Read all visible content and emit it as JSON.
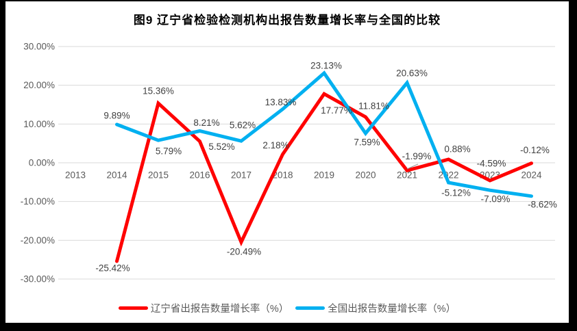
{
  "title": "图9  辽宁省检验检测机构出报告数量增长率与全国的比较",
  "chart_data": {
    "type": "line",
    "title": "图9  辽宁省检验检测机构出报告数量增长率与全国的比较",
    "categories": [
      "2013",
      "2014",
      "2015",
      "2016",
      "2017",
      "2018",
      "2019",
      "2020",
      "2021",
      "2022",
      "2023",
      "2024"
    ],
    "series": [
      {
        "name": "辽宁省出报告数量增长率（%）",
        "color": "#FF0000",
        "values": [
          null,
          -25.42,
          15.36,
          5.52,
          -20.49,
          2.18,
          17.77,
          11.81,
          -1.99,
          0.88,
          -4.59,
          -0.12
        ],
        "labels": [
          null,
          "-25.42%",
          "15.36%",
          "5.52%",
          "-20.49%",
          "2.18%",
          "17.77%",
          "11.81%",
          "-1.99%",
          "0.88%",
          "-4.59%",
          "-0.12%"
        ],
        "label_offsets": [
          null,
          [
            -6,
            10
          ],
          [
            0,
            -18
          ],
          [
            32,
            8
          ],
          [
            4,
            14
          ],
          [
            -10,
            -13
          ],
          [
            18,
            24
          ],
          [
            12,
            -16
          ],
          [
            14,
            -21
          ],
          [
            13,
            -15
          ],
          [
            2,
            -25
          ],
          [
            5,
            -19
          ]
        ]
      },
      {
        "name": "全国出报告数量增长率（%）",
        "color": "#00B0F0",
        "values": [
          null,
          9.89,
          5.79,
          8.21,
          5.62,
          13.83,
          23.13,
          7.59,
          20.63,
          -5.12,
          -7.09,
          -8.62
        ],
        "labels": [
          null,
          "9.89%",
          "5.79%",
          "8.21%",
          "5.62%",
          "13.83%",
          "23.13%",
          "7.59%",
          "20.63%",
          "-5.12%",
          "-7.09%",
          "-8.62%"
        ],
        "label_offsets": [
          null,
          [
            0,
            -13
          ],
          [
            15,
            16
          ],
          [
            10,
            -12
          ],
          [
            2,
            -23
          ],
          [
            -3,
            -10
          ],
          [
            3,
            -11
          ],
          [
            2,
            13
          ],
          [
            7,
            -14
          ],
          [
            11,
            15
          ],
          [
            8,
            13
          ],
          [
            16,
            12
          ]
        ]
      }
    ],
    "ylim": [
      -30,
      30
    ],
    "ytick_step": 10,
    "yticks": [
      "30.00%",
      "20.00%",
      "10.00%",
      "0.00%",
      "-10.00%",
      "-20.00%",
      "-30.00%"
    ],
    "grid": true,
    "legend_position": "bottom",
    "colors": {
      "gridline": "#D9D9D9",
      "axis_text": "#595959",
      "data_label": "#404040",
      "title_text": "#000000",
      "frame_border": "#000000"
    }
  }
}
